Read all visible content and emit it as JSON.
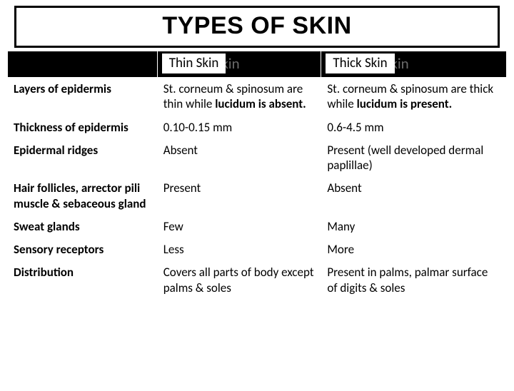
{
  "title": "TYPES OF SKIN",
  "headers": {
    "thin_shadow": "Thin Skin",
    "thin_label": "Thin Skin",
    "thick_shadow": "Thick Skin",
    "thick_label": "Thick Skin"
  },
  "rows": [
    {
      "attr": "Layers of epidermis",
      "thin_pre": "St. corneum & spinosum are thin while ",
      "thin_bold": "lucidum is absent.",
      "thin_post": "",
      "thick_pre": "St. corneum & spinosum are thick while ",
      "thick_bold": "lucidum is present.",
      "thick_post": ""
    },
    {
      "attr": "Thickness of epidermis",
      "thin_pre": "0.10-0.15 mm",
      "thin_bold": "",
      "thin_post": "",
      "thick_pre": "0.6-4.5 mm",
      "thick_bold": "",
      "thick_post": ""
    },
    {
      "attr": "Epidermal ridges",
      "thin_pre": "Absent",
      "thin_bold": "",
      "thin_post": "",
      "thick_pre": "Present (well developed dermal paplillae)",
      "thick_bold": "",
      "thick_post": ""
    },
    {
      "attr": "Hair follicles, arrector pili muscle & sebaceous gland",
      "thin_pre": "Present",
      "thin_bold": "",
      "thin_post": "",
      "thick_pre": "Absent",
      "thick_bold": "",
      "thick_post": ""
    },
    {
      "attr": "Sweat glands",
      "thin_pre": "Few",
      "thin_bold": "",
      "thin_post": "",
      "thick_pre": "Many",
      "thick_bold": "",
      "thick_post": ""
    },
    {
      "attr": "Sensory receptors",
      "thin_pre": "Less",
      "thin_bold": "",
      "thin_post": "",
      "thick_pre": "More",
      "thick_bold": "",
      "thick_post": ""
    },
    {
      "attr": "Distribution",
      "thin_pre": "Covers all parts of body except palms & soles",
      "thin_bold": "",
      "thin_post": "",
      "thick_pre": "Present in palms, palmar surface of digits & soles",
      "thick_bold": "",
      "thick_post": ""
    }
  ],
  "colors": {
    "header_bg": "#000000",
    "shadow_text": "#6b6b6b",
    "white": "#ffffff",
    "black": "#000000"
  }
}
